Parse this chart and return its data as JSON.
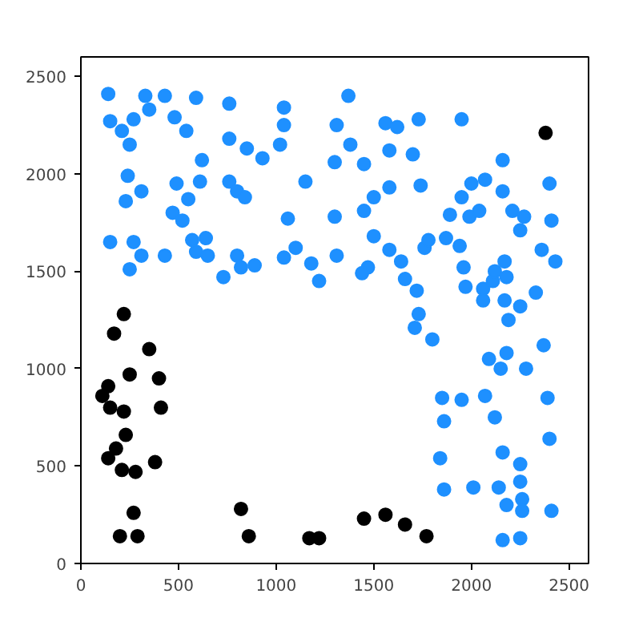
{
  "chart_data": {
    "type": "scatter",
    "marker": "circle",
    "grid": false,
    "xlim": [
      0,
      2600
    ],
    "ylim": [
      0,
      2600
    ],
    "xticks": [
      0,
      500,
      1000,
      1500,
      2000,
      2500
    ],
    "yticks": [
      0,
      500,
      1000,
      1500,
      2000,
      2500
    ],
    "series": [
      {
        "color": "#1e90ff",
        "x": [
          140,
          330,
          430,
          590,
          760,
          1040,
          150,
          270,
          350,
          210,
          480,
          540,
          250,
          760,
          1040,
          1310,
          850,
          930,
          1020,
          620,
          240,
          490,
          610,
          760,
          800,
          840,
          1150,
          1300,
          230,
          310,
          550,
          470,
          520,
          1060,
          1300,
          150,
          270,
          310,
          430,
          250,
          570,
          640,
          590,
          650,
          800,
          820,
          890,
          730,
          1040,
          1100,
          1180,
          1220,
          1310,
          1370,
          1560,
          1620,
          1730,
          1950,
          1380,
          1450,
          1580,
          1700,
          2160,
          1740,
          1580,
          1500,
          2000,
          2070,
          1950,
          2160,
          2400,
          1450,
          1890,
          1990,
          2040,
          2210,
          2270,
          2250,
          2410,
          1500,
          1580,
          1760,
          1780,
          1870,
          1940,
          1640,
          1470,
          1440,
          1660,
          1720,
          1960,
          1970,
          2060,
          2110,
          2120,
          2170,
          2180,
          2060,
          2170,
          2250,
          2330,
          2360,
          2430,
          1730,
          1710,
          1800,
          2190,
          2370,
          2090,
          2180,
          2150,
          2280,
          1850,
          1950,
          2070,
          2390,
          1860,
          2120,
          2400,
          1840,
          2160,
          2250,
          2250,
          1860,
          2010,
          2140,
          2260,
          2180,
          2260,
          2410,
          2160,
          2250
        ],
        "values": [
          2410,
          2400,
          2400,
          2390,
          2360,
          2340,
          2270,
          2280,
          2330,
          2220,
          2290,
          2220,
          2150,
          2180,
          2250,
          2250,
          2130,
          2080,
          2150,
          2070,
          1990,
          1950,
          1960,
          1960,
          1910,
          1880,
          1960,
          2060,
          1860,
          1910,
          1870,
          1800,
          1760,
          1770,
          1780,
          1650,
          1650,
          1580,
          1580,
          1510,
          1660,
          1670,
          1600,
          1580,
          1580,
          1520,
          1530,
          1470,
          1570,
          1620,
          1540,
          1450,
          1580,
          2400,
          2260,
          2240,
          2280,
          2280,
          2150,
          2050,
          2120,
          2100,
          2070,
          1940,
          1930,
          1880,
          1950,
          1970,
          1880,
          1910,
          1950,
          1810,
          1790,
          1780,
          1810,
          1810,
          1780,
          1710,
          1760,
          1680,
          1610,
          1620,
          1660,
          1670,
          1630,
          1550,
          1520,
          1490,
          1460,
          1400,
          1520,
          1420,
          1410,
          1450,
          1500,
          1550,
          1470,
          1350,
          1350,
          1320,
          1390,
          1610,
          1550,
          1280,
          1210,
          1150,
          1250,
          1120,
          1050,
          1080,
          1000,
          1000,
          850,
          840,
          860,
          850,
          730,
          750,
          640,
          540,
          570,
          510,
          420,
          380,
          390,
          390,
          330,
          300,
          270,
          270,
          120,
          130
        ]
      },
      {
        "color": "#000000",
        "x": [
          2380,
          220,
          170,
          350,
          250,
          400,
          140,
          110,
          150,
          220,
          410,
          230,
          180,
          140,
          210,
          280,
          380,
          270,
          200,
          290,
          820,
          860,
          1170,
          1220,
          1450,
          1560,
          1660,
          1770
        ],
        "values": [
          2210,
          1280,
          1180,
          1100,
          970,
          950,
          910,
          860,
          800,
          780,
          800,
          660,
          590,
          540,
          480,
          470,
          520,
          260,
          140,
          140,
          280,
          140,
          130,
          130,
          230,
          250,
          200,
          140
        ]
      }
    ]
  }
}
